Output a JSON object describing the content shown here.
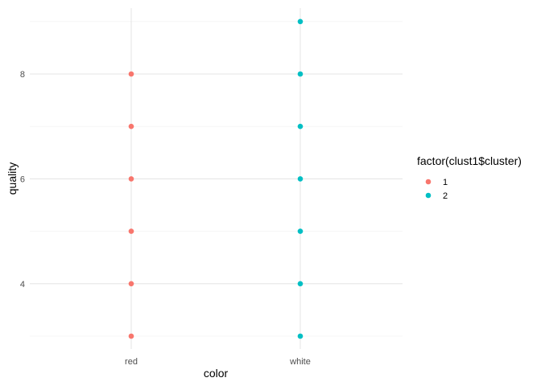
{
  "chart_data": {
    "type": "scatter",
    "title": "",
    "xlabel": "color",
    "ylabel": "quality",
    "categories": [
      "red",
      "white"
    ],
    "y_ticks": [
      4,
      6,
      8
    ],
    "y_minor_ticks": [
      3,
      5,
      7,
      9
    ],
    "ylim": [
      2.7,
      9.3
    ],
    "grid": true,
    "legend": {
      "title": "factor(clust1$cluster)",
      "placement": "right",
      "entries": [
        {
          "label": "1",
          "color": "#F8766D"
        },
        {
          "label": "2",
          "color": "#00BFC4"
        }
      ]
    },
    "series": [
      {
        "name": "1",
        "color": "#F8766D",
        "points": [
          {
            "x": "red",
            "y": 3
          },
          {
            "x": "red",
            "y": 4
          },
          {
            "x": "red",
            "y": 5
          },
          {
            "x": "red",
            "y": 6
          },
          {
            "x": "red",
            "y": 7
          },
          {
            "x": "red",
            "y": 8
          }
        ]
      },
      {
        "name": "2",
        "color": "#00BFC4",
        "points": [
          {
            "x": "white",
            "y": 3
          },
          {
            "x": "white",
            "y": 4
          },
          {
            "x": "white",
            "y": 5
          },
          {
            "x": "white",
            "y": 6
          },
          {
            "x": "white",
            "y": 7
          },
          {
            "x": "white",
            "y": 8
          },
          {
            "x": "white",
            "y": 9
          }
        ]
      }
    ]
  }
}
